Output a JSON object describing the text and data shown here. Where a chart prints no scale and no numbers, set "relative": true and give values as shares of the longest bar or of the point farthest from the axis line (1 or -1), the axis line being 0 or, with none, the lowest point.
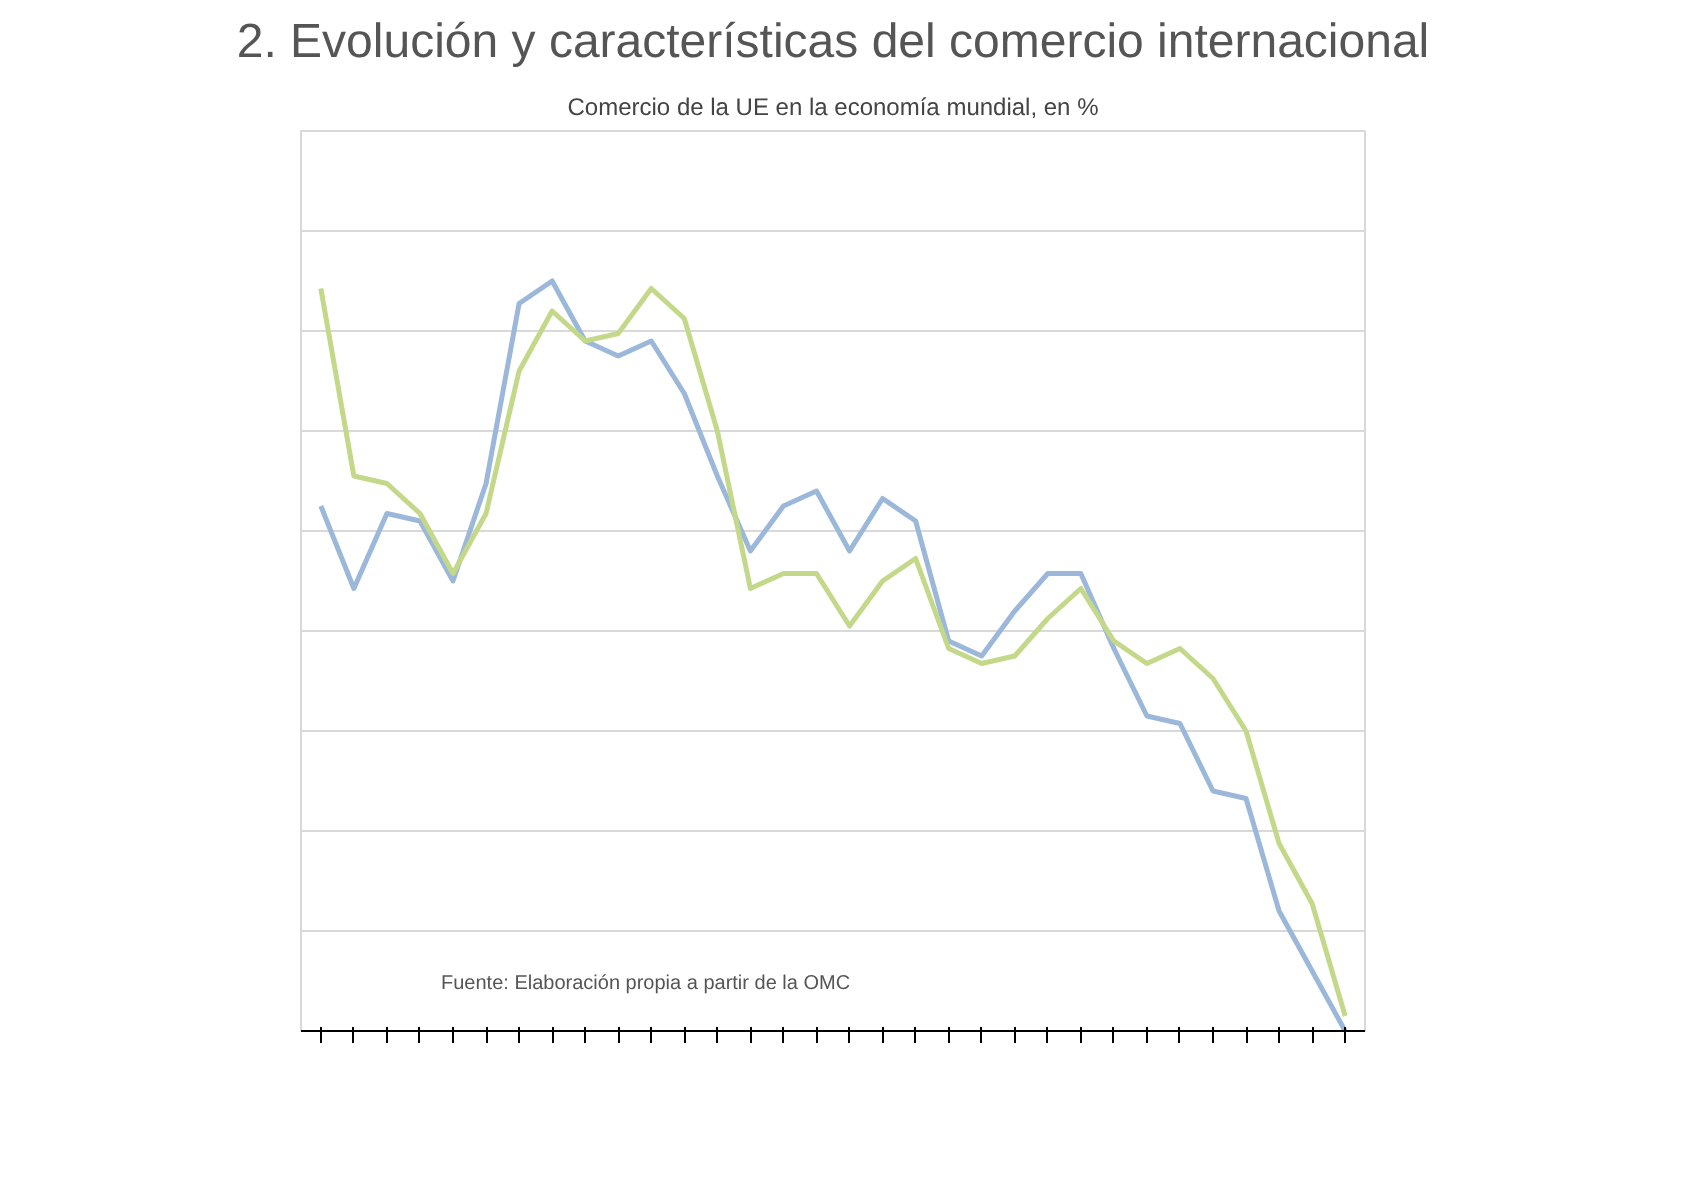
{
  "chart_data": {
    "type": "line",
    "title": "2. Evolución y características del comercio internacional",
    "subtitle": "Comercio de la UE en la economía mundial, en %",
    "categories": [
      null,
      null,
      null,
      null,
      null,
      null,
      null,
      null,
      null,
      null,
      null,
      null,
      null,
      null,
      null,
      null,
      null,
      null,
      null,
      null,
      null,
      null,
      null,
      null,
      null,
      null,
      null,
      null,
      null,
      null,
      null,
      null
    ],
    "relative": true,
    "grid": "y",
    "marker": "none",
    "line_style": "solid",
    "series": [
      {
        "color": "#9bb7d9",
        "values": [
          0.7,
          0.59,
          0.69,
          0.68,
          0.6,
          0.73,
          0.97,
          1.0,
          0.92,
          0.9,
          0.92,
          0.85,
          0.74,
          0.64,
          0.7,
          0.72,
          0.64,
          0.71,
          0.68,
          0.52,
          0.5,
          0.56,
          0.61,
          0.61,
          0.51,
          0.42,
          0.41,
          0.32,
          0.31,
          0.16,
          0.08,
          0
        ]
      },
      {
        "color": "#c4d88a",
        "values": [
          0.99,
          0.74,
          0.73,
          0.69,
          0.61,
          0.69,
          0.88,
          0.96,
          0.92,
          0.93,
          0.99,
          0.95,
          0.8,
          0.59,
          0.61,
          0.61,
          0.54,
          0.6,
          0.63,
          0.51,
          0.49,
          0.5,
          0.55,
          0.59,
          0.52,
          0.49,
          0.51,
          0.47,
          0.4,
          0.25,
          0.17,
          0.02
        ]
      }
    ],
    "annotations": [
      "Fuente: Elaboración propia a partir de la OMC"
    ]
  }
}
